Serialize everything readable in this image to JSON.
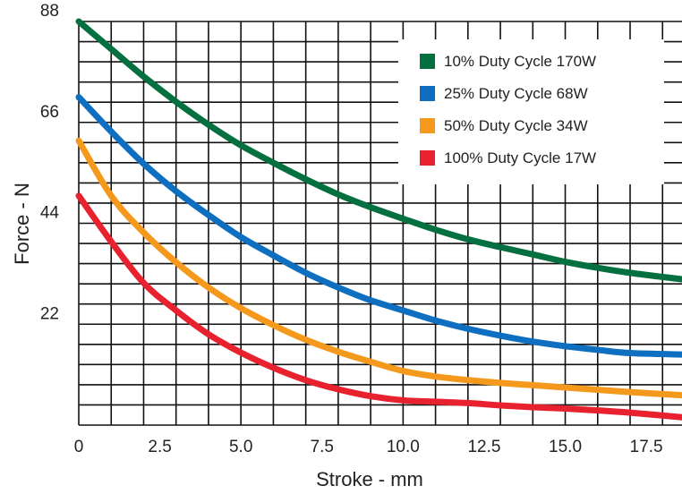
{
  "chart_data": {
    "type": "line",
    "title": "",
    "xlabel": "Stroke - mm",
    "ylabel": "Force - N",
    "xlim": [
      0,
      18.6
    ],
    "ylim": [
      0,
      88
    ],
    "x_ticks": [
      {
        "value": 0,
        "label": "0"
      },
      {
        "value": 2.5,
        "label": "2.5"
      },
      {
        "value": 5,
        "label": "5.0"
      },
      {
        "value": 7.5,
        "label": "7.5"
      },
      {
        "value": 10,
        "label": "10.0"
      },
      {
        "value": 12.5,
        "label": "12.5"
      },
      {
        "value": 15,
        "label": "15.0"
      },
      {
        "value": 17.5,
        "label": "17.5"
      }
    ],
    "y_ticks": [
      {
        "value": 22,
        "label": "22"
      },
      {
        "value": 44,
        "label": "44"
      },
      {
        "value": 66,
        "label": "66"
      },
      {
        "value": 88,
        "label": "88"
      }
    ],
    "grid": true,
    "grid_x_step": 1,
    "grid_y_step": 4.4,
    "legend_position": "top-right",
    "series": [
      {
        "name": "10% Duty Cycle 170W",
        "color": "#05703f",
        "x": [
          0,
          1,
          2,
          3,
          4,
          5,
          6,
          7,
          8,
          9,
          10,
          11,
          12,
          13,
          14,
          15,
          16,
          17,
          18.6
        ],
        "y": [
          88,
          82,
          76,
          70.5,
          65.5,
          61,
          57.2,
          53.6,
          50.3,
          47.5,
          45,
          42.6,
          40.5,
          38.8,
          37.2,
          35.6,
          34.3,
          33.2,
          31.8
        ]
      },
      {
        "name": "25% Duty Cycle 68W",
        "color": "#0e6fc0",
        "x": [
          0,
          1,
          2,
          3,
          4,
          5,
          6,
          7,
          8,
          9,
          10,
          11,
          12,
          13,
          14,
          15,
          16,
          17,
          18.6
        ],
        "y": [
          71.5,
          64,
          57,
          51,
          45.8,
          41,
          37,
          33.2,
          30,
          27.2,
          25,
          22.8,
          21,
          19.5,
          18.2,
          17.2,
          16.4,
          15.7,
          15.4
        ]
      },
      {
        "name": "50% Duty Cycle 34W",
        "color": "#f5991d",
        "x": [
          0,
          1,
          2,
          3,
          4,
          5,
          6,
          7,
          8,
          9,
          10,
          11,
          12,
          13,
          14,
          15,
          16,
          17,
          18.6
        ],
        "y": [
          62,
          50,
          42,
          35.5,
          30,
          25.5,
          21.8,
          18.6,
          16,
          13.8,
          11.8,
          10.6,
          9.8,
          9.2,
          8.7,
          8.2,
          7.7,
          7.2,
          6.5
        ]
      },
      {
        "name": "100% Duty Cycle 17W",
        "color": "#e8212e",
        "x": [
          0,
          1,
          2,
          3,
          4,
          5,
          6,
          7,
          8,
          9,
          10,
          11,
          12,
          13,
          14,
          15,
          16,
          17,
          18.6
        ],
        "y": [
          50,
          40,
          31,
          25,
          19.8,
          15.8,
          12.5,
          9.8,
          7.8,
          6.3,
          5.4,
          5.1,
          4.8,
          4.3,
          3.9,
          3.6,
          3.2,
          2.7,
          1.7
        ]
      }
    ]
  }
}
